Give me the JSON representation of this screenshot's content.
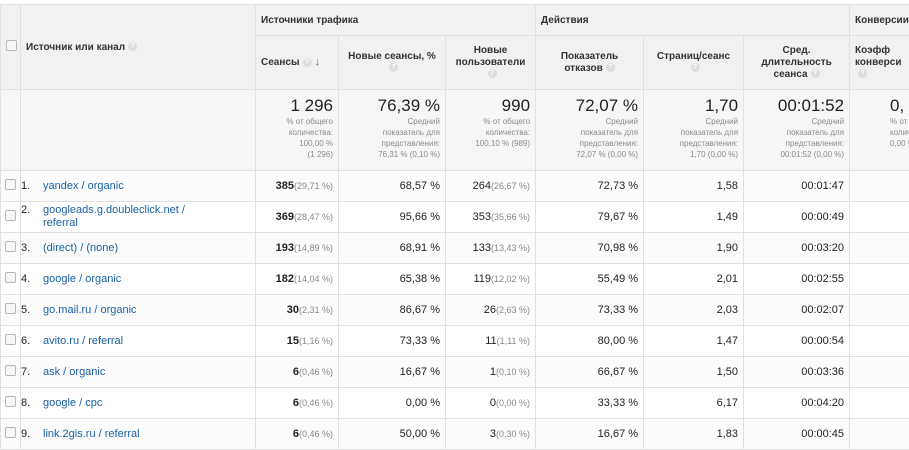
{
  "header": {
    "checkbox_col": "",
    "source_label": "Источник или канал",
    "groups": {
      "traffic": "Источники трафика",
      "actions": "Действия",
      "conversions": "Конверсии"
    },
    "columns": {
      "sessions": "Сеансы",
      "new_sessions": "Новые сеансы, %",
      "new_users_line1": "Новые",
      "new_users_line2": "пользователи",
      "bounce_line1": "Показатель",
      "bounce_line2": "отказов",
      "pages_per_session": "Страниц/сеанс",
      "duration_line1": "Сред.",
      "duration_line2": "длительность",
      "duration_line3": "сеанса",
      "conv_line1": "Коэфф",
      "conv_line2": "конверси"
    }
  },
  "totals": {
    "sessions": {
      "value": "1 296",
      "l1": "% от общего",
      "l2": "количества:",
      "l3": "100,00 %",
      "l4": "(1 296)"
    },
    "new_sessions": {
      "value": "76,39 %",
      "l1": "Средний",
      "l2": "показатель для",
      "l3": "представления:",
      "l4": "76,31 % (0,10 %)"
    },
    "new_users": {
      "value": "990",
      "l1": "% от общего",
      "l2": "количества:",
      "l3": "100,10 % (989)",
      "l4": ""
    },
    "bounce": {
      "value": "72,07 %",
      "l1": "Средний",
      "l2": "показатель для",
      "l3": "представления:",
      "l4": "72,07 % (0,00 %)"
    },
    "pages": {
      "value": "1,70",
      "l1": "Средний",
      "l2": "показатель для",
      "l3": "представления:",
      "l4": "1,70 (0,00 %)"
    },
    "duration": {
      "value": "00:01:52",
      "l1": "Средний",
      "l2": "показатель для",
      "l3": "представления:",
      "l4": "00:01:52 (0,00 %)"
    },
    "conversion": {
      "value": "0,",
      "l1": "% от",
      "l2": "колич",
      "l3": "0,00 %",
      "l4": ""
    }
  },
  "rows": [
    {
      "idx": "1.",
      "source": "yandex / organic",
      "sessions": "385",
      "sessions_pct": "(29,71 %)",
      "new_sessions": "68,57 %",
      "new_users": "264",
      "new_users_pct": "(26,67 %)",
      "bounce": "72,73 %",
      "pages": "1,58",
      "duration": "00:01:47"
    },
    {
      "idx": "2.",
      "source": "googleads.g.doubleclick.net / referral",
      "sessions": "369",
      "sessions_pct": "(28,47 %)",
      "new_sessions": "95,66 %",
      "new_users": "353",
      "new_users_pct": "(35,66 %)",
      "bounce": "79,67 %",
      "pages": "1,49",
      "duration": "00:00:49"
    },
    {
      "idx": "3.",
      "source": "(direct) / (none)",
      "sessions": "193",
      "sessions_pct": "(14,89 %)",
      "new_sessions": "68,91 %",
      "new_users": "133",
      "new_users_pct": "(13,43 %)",
      "bounce": "70,98 %",
      "pages": "1,90",
      "duration": "00:03:20"
    },
    {
      "idx": "4.",
      "source": "google / organic",
      "sessions": "182",
      "sessions_pct": "(14,04 %)",
      "new_sessions": "65,38 %",
      "new_users": "119",
      "new_users_pct": "(12,02 %)",
      "bounce": "55,49 %",
      "pages": "2,01",
      "duration": "00:02:55"
    },
    {
      "idx": "5.",
      "source": "go.mail.ru / organic",
      "sessions": "30",
      "sessions_pct": "(2,31 %)",
      "new_sessions": "86,67 %",
      "new_users": "26",
      "new_users_pct": "(2,63 %)",
      "bounce": "73,33 %",
      "pages": "2,03",
      "duration": "00:02:07"
    },
    {
      "idx": "6.",
      "source": "avito.ru / referral",
      "sessions": "15",
      "sessions_pct": "(1,16 %)",
      "new_sessions": "73,33 %",
      "new_users": "11",
      "new_users_pct": "(1,11 %)",
      "bounce": "80,00 %",
      "pages": "1,47",
      "duration": "00:00:54"
    },
    {
      "idx": "7.",
      "source": "ask / organic",
      "sessions": "6",
      "sessions_pct": "(0,46 %)",
      "new_sessions": "16,67 %",
      "new_users": "1",
      "new_users_pct": "(0,10 %)",
      "bounce": "66,67 %",
      "pages": "1,50",
      "duration": "00:03:36"
    },
    {
      "idx": "8.",
      "source": "google / cpc",
      "sessions": "6",
      "sessions_pct": "(0,46 %)",
      "new_sessions": "0,00 %",
      "new_users": "0",
      "new_users_pct": "(0,00 %)",
      "bounce": "33,33 %",
      "pages": "6,17",
      "duration": "00:04:20"
    },
    {
      "idx": "9.",
      "source": "link.2gis.ru / referral",
      "sessions": "6",
      "sessions_pct": "(0,46 %)",
      "new_sessions": "50,00 %",
      "new_users": "3",
      "new_users_pct": "(0,30 %)",
      "bounce": "16,67 %",
      "pages": "1,83",
      "duration": "00:00:45"
    }
  ]
}
